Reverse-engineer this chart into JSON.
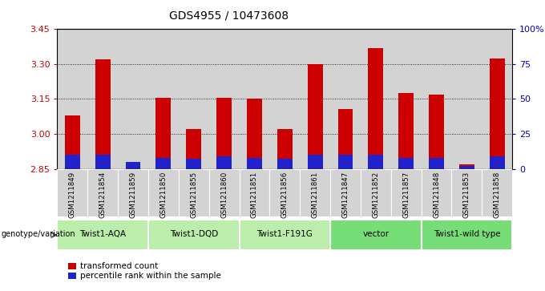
{
  "title": "GDS4955 / 10473608",
  "samples": [
    "GSM1211849",
    "GSM1211854",
    "GSM1211859",
    "GSM1211850",
    "GSM1211855",
    "GSM1211860",
    "GSM1211851",
    "GSM1211856",
    "GSM1211861",
    "GSM1211847",
    "GSM1211852",
    "GSM1211857",
    "GSM1211848",
    "GSM1211853",
    "GSM1211858"
  ],
  "red_values": [
    3.08,
    3.32,
    2.875,
    3.155,
    3.02,
    3.155,
    3.15,
    3.02,
    3.3,
    3.105,
    3.37,
    3.175,
    3.17,
    2.87,
    3.325
  ],
  "blue_pct": [
    10,
    10,
    5,
    8,
    7,
    9,
    8,
    7,
    10,
    10,
    10,
    8,
    8,
    2,
    9
  ],
  "ymin": 2.85,
  "ymax": 3.45,
  "yticks": [
    2.85,
    3.0,
    3.15,
    3.3,
    3.45
  ],
  "right_yticks": [
    0,
    25,
    50,
    75,
    100
  ],
  "groups": [
    {
      "label": "Twist1-AQA",
      "start": 0,
      "end": 3,
      "color": "#bbeeaa"
    },
    {
      "label": "Twist1-DQD",
      "start": 3,
      "end": 6,
      "color": "#bbeeaa"
    },
    {
      "label": "Twist1-F191G",
      "start": 6,
      "end": 9,
      "color": "#bbeeaa"
    },
    {
      "label": "vector",
      "start": 9,
      "end": 12,
      "color": "#77dd77"
    },
    {
      "label": "Twist1-wild type",
      "start": 12,
      "end": 15,
      "color": "#77dd77"
    }
  ],
  "genotype_label": "genotype/variation",
  "legend_red": "transformed count",
  "legend_blue": "percentile rank within the sample",
  "bar_width": 0.5,
  "bar_color_red": "#cc0000",
  "bar_color_blue": "#2222cc",
  "tick_color_left": "#cc0000",
  "tick_color_right": "#0000cc",
  "bg_color_sample": "#d3d3d3",
  "grid_color": "black",
  "grid_lines": [
    3.0,
    3.15,
    3.3
  ]
}
